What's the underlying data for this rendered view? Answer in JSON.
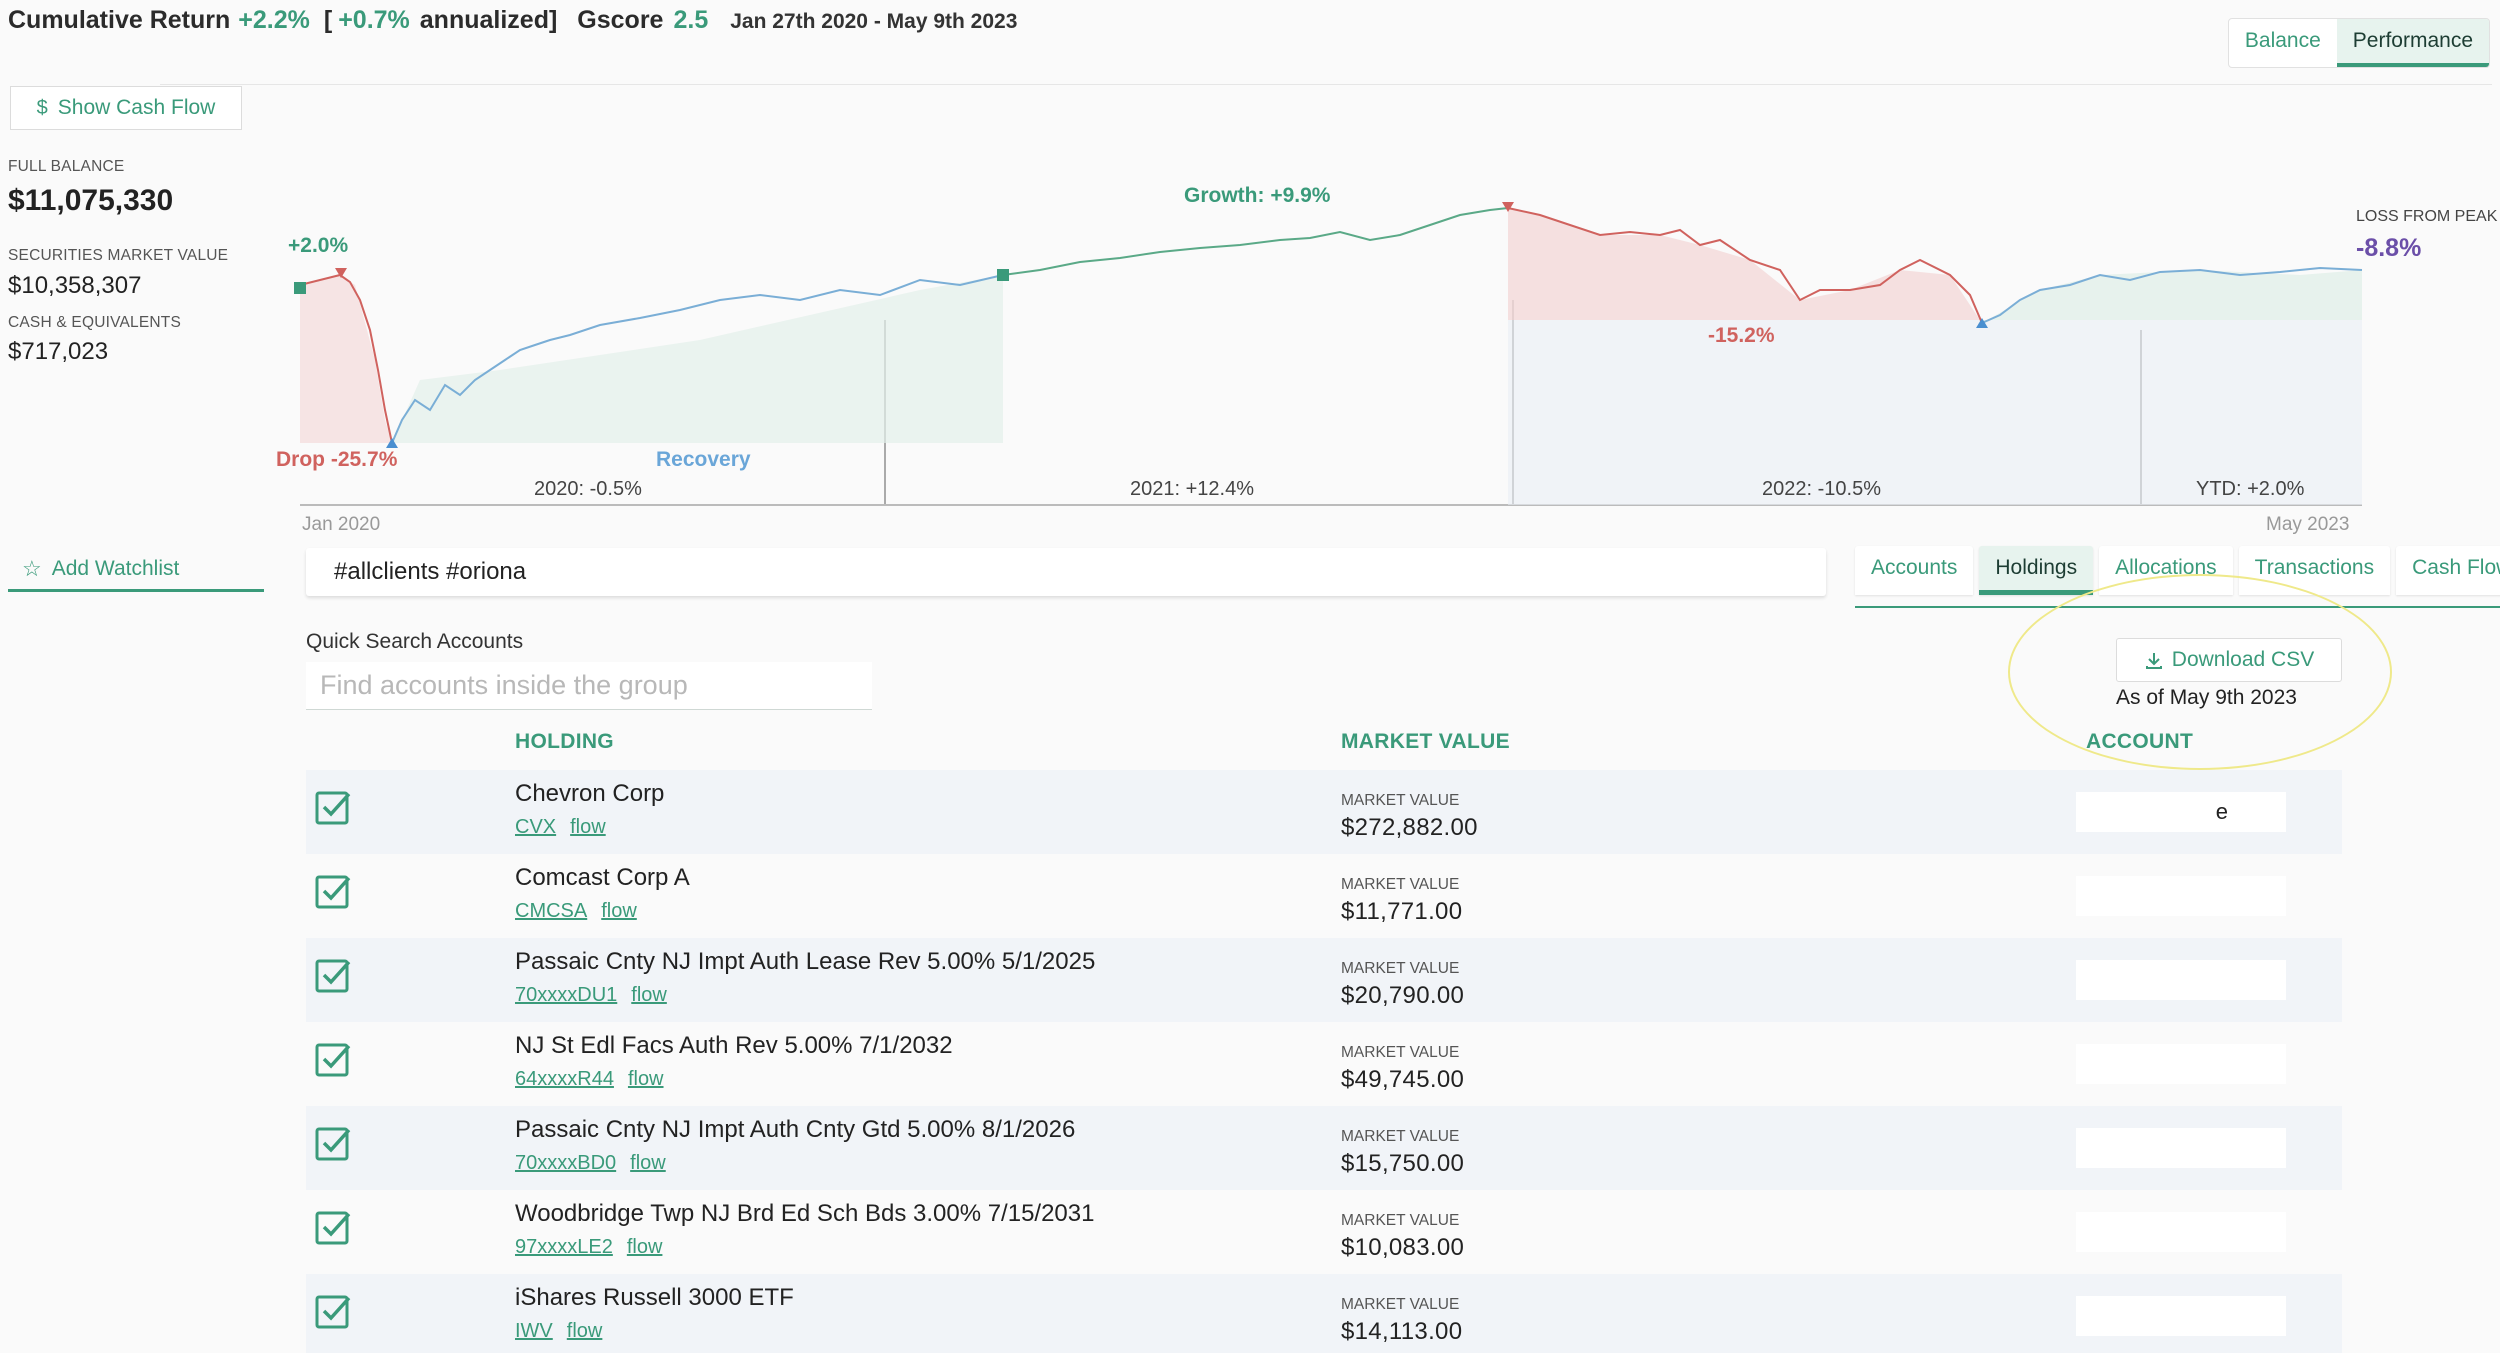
{
  "header": {
    "cumulative_label": "Cumulative Return",
    "cumulative_value": "+2.2%",
    "annualized_open": "[",
    "annualized_value": "+0.7%",
    "annualized_label": "annualized]",
    "gscore_label": "Gscore",
    "gscore_value": "2.5",
    "date_range": "Jan 27th 2020 - May 9th 2023"
  },
  "view_toggle": {
    "balance": "Balance",
    "performance": "Performance",
    "active": "performance"
  },
  "cash_flow_button": {
    "icon": "dollar-icon",
    "label": "Show Cash Flow"
  },
  "summary": {
    "full_balance_label": "FULL BALANCE",
    "full_balance": "$11,075,330",
    "securities_label": "SECURITIES MARKET VALUE",
    "securities": "$10,358,307",
    "cash_label": "CASH & EQUIVALENTS",
    "cash": "$717,023"
  },
  "chart_data": {
    "type": "area",
    "x_start": "Jan 2020",
    "x_end": "May 2023",
    "annotations": {
      "start": "+2.0%",
      "drop": "Drop -25.7%",
      "recovery": "Recovery",
      "growth": "Growth: +9.9%",
      "decline": "-15.2%",
      "loss_from_peak_label": "LOSS FROM PEAK",
      "loss_from_peak": "-8.8%"
    },
    "year_labels": [
      "2020: -0.5%",
      "2021: +12.4%",
      "2022: -10.5%",
      "YTD: +2.0%"
    ],
    "colors": {
      "green": "#3a9a7a",
      "red": "#d0625e",
      "blue": "#6aa6d8",
      "purple": "#6b4fa8"
    }
  },
  "watchlist": {
    "icon": "star-icon",
    "label": "Add Watchlist"
  },
  "filter": {
    "value": "#allclients #oriona"
  },
  "tabs": [
    "Accounts",
    "Holdings",
    "Allocations",
    "Transactions",
    "Cash Flow"
  ],
  "active_tab": "Holdings",
  "quick_search": {
    "label": "Quick Search Accounts",
    "placeholder": "Find accounts inside the group"
  },
  "csv": {
    "icon": "download-icon",
    "label": "Download CSV",
    "as_of": "As of May 9th 2023"
  },
  "table": {
    "headers": {
      "holding": "HOLDING",
      "market_value": "MARKET VALUE",
      "account": "ACCOUNT"
    },
    "mv_label": "MARKET VALUE",
    "flow_label": "flow",
    "rows": [
      {
        "name": "Chevron Corp",
        "ticker": "CVX",
        "value": "$272,882.00",
        "account_fragment": "e"
      },
      {
        "name": "Comcast Corp A",
        "ticker": "CMCSA",
        "value": "$11,771.00"
      },
      {
        "name": "Passaic Cnty NJ Impt Auth Lease Rev 5.00% 5/1/2025",
        "ticker": "70xxxxDU1",
        "value": "$20,790.00"
      },
      {
        "name": "NJ St Edl Facs Auth Rev 5.00% 7/1/2032",
        "ticker": "64xxxxR44",
        "value": "$49,745.00"
      },
      {
        "name": "Passaic Cnty NJ Impt Auth Cnty Gtd 5.00% 8/1/2026",
        "ticker": "70xxxxBD0",
        "value": "$15,750.00"
      },
      {
        "name": "Woodbridge Twp NJ Brd Ed Sch Bds 3.00% 7/15/2031",
        "ticker": "97xxxxLE2",
        "value": "$10,083.00"
      },
      {
        "name": "iShares Russell 3000 ETF",
        "ticker": "IWV",
        "value": "$14,113.00"
      }
    ]
  }
}
